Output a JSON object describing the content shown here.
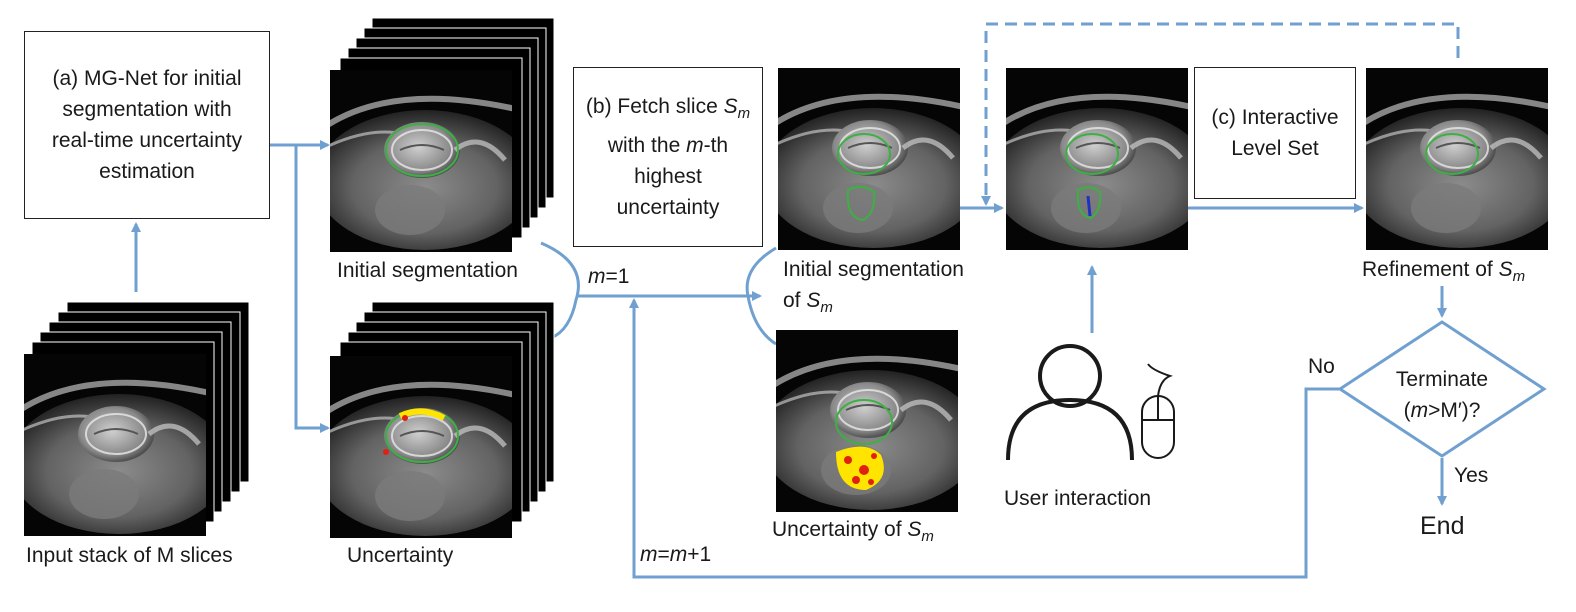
{
  "boxes": {
    "a": {
      "line1": "(a) MG-Net for initial",
      "line2": "segmentation with",
      "line3": "real-time uncertainty",
      "line4": "estimation"
    },
    "b": {
      "line1_pre": "(b) Fetch slice ",
      "S": "S",
      "m": "m",
      "line2_pre": "with the ",
      "line2_m": "m",
      "line2_post": "-th",
      "line3": "highest",
      "line4": "uncertainty"
    },
    "c": {
      "line1": "(c) Interactive",
      "line2": "Level Set"
    },
    "decision": {
      "line1": "Terminate",
      "line2_pre": "(",
      "line2_m": "m",
      "line2_post": ">M′)?"
    }
  },
  "labels": {
    "input_stack": "Input stack of M slices",
    "initial_segmentation": "Initial segmentation",
    "uncertainty": "Uncertainty",
    "init_seg_sm_line1": "Initial segmentation",
    "init_seg_sm_line2_pre": "of ",
    "uncertainty_sm_pre": "Uncertainty of ",
    "refinement_pre": "Refinement of ",
    "user_interaction": "User interaction",
    "no": "No",
    "yes": "Yes",
    "end": "End",
    "m_eq_1_m": "m",
    "m_eq_1_post": "=1",
    "m_eq_m1_m": "m",
    "m_eq_m1_mid": "=",
    "m_eq_m1_m2": "m",
    "m_eq_m1_post": "+1",
    "S": "S",
    "m": "m"
  },
  "colors": {
    "arrow": "#6fa0d0",
    "contour": "#3cb043",
    "uncertainty_yellow": "#ffe400",
    "uncertainty_red": "#e02010",
    "user_stroke": "#1a1a1a"
  }
}
